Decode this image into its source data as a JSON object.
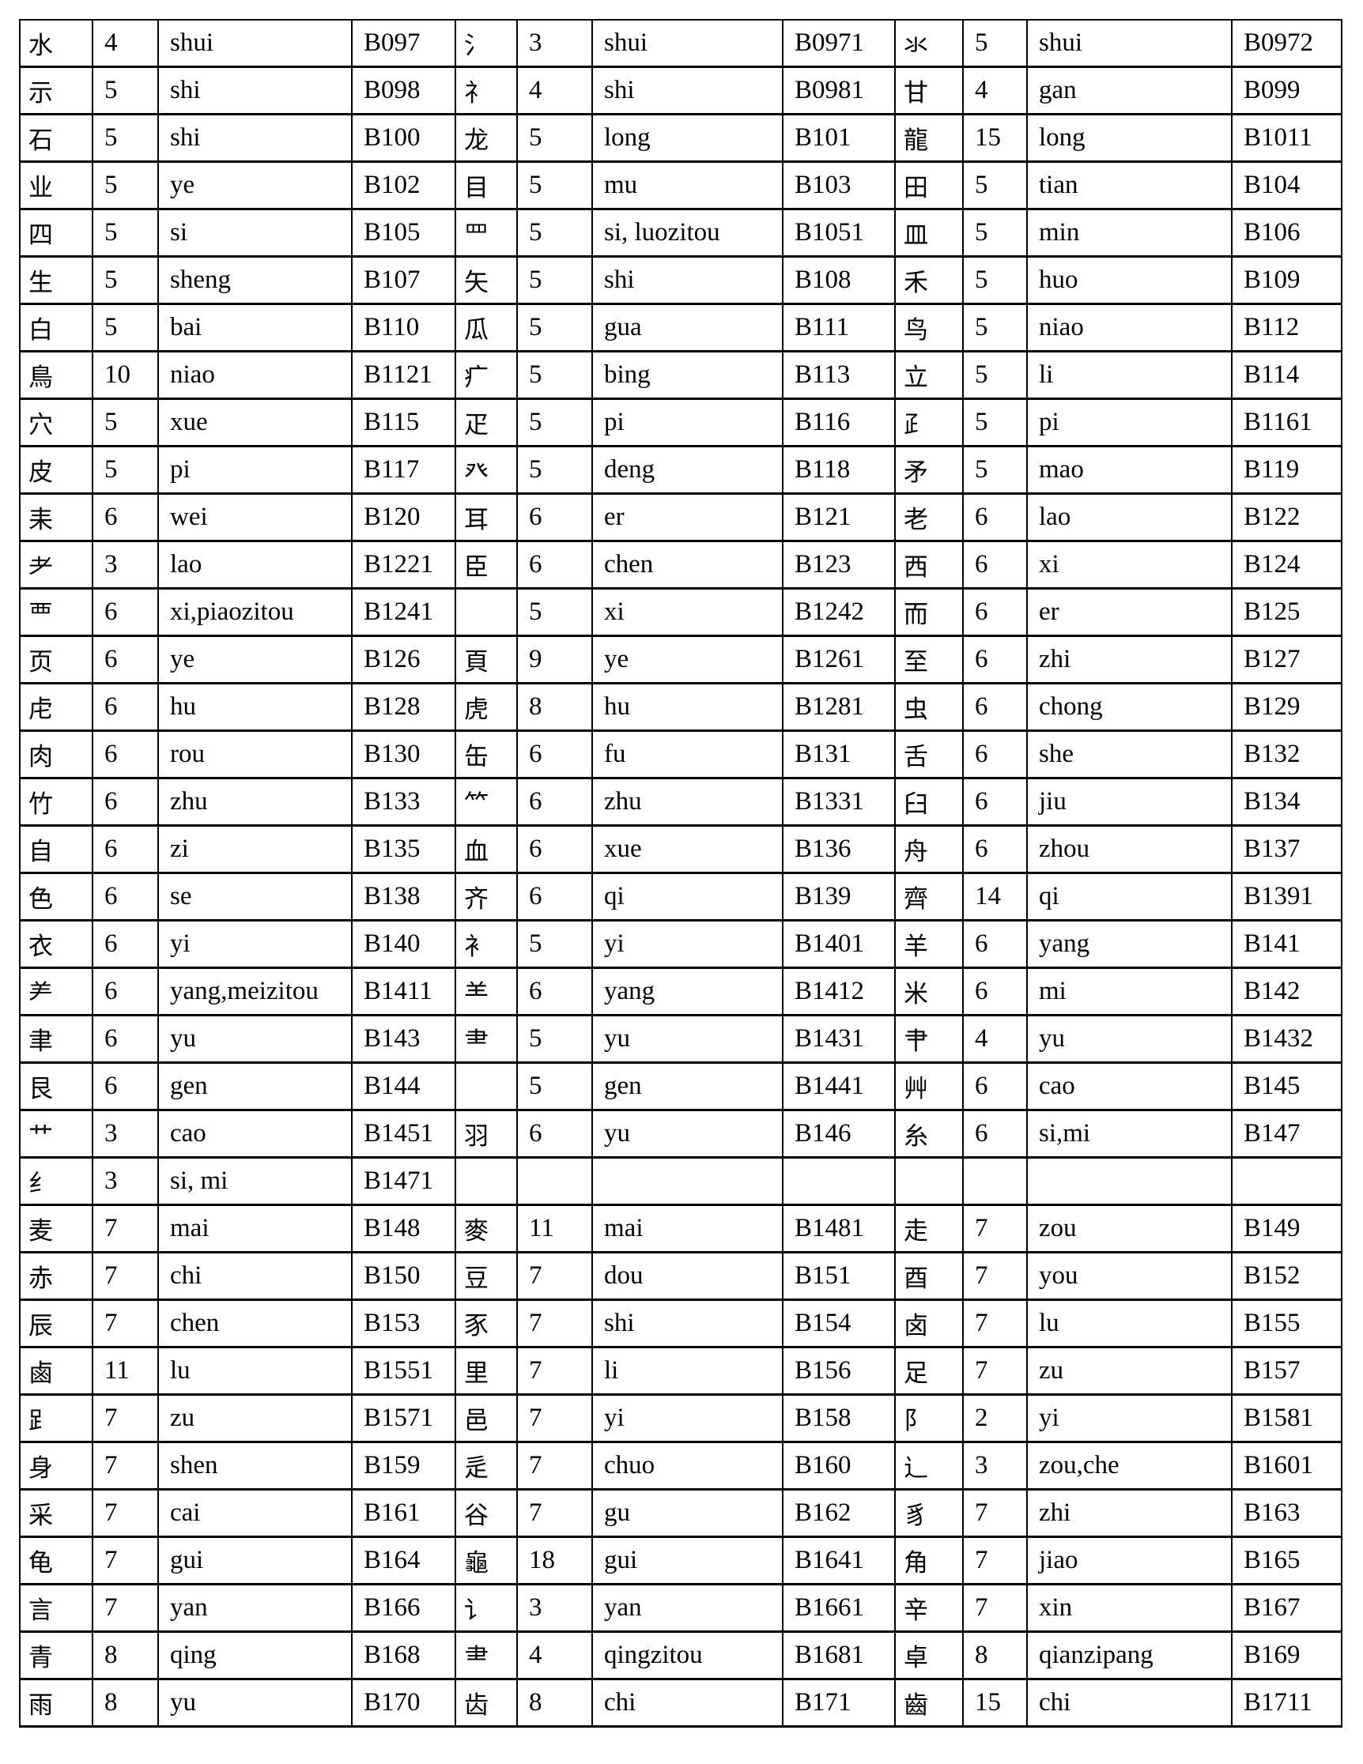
{
  "table": {
    "rows": [
      [
        "水",
        "4",
        "shui",
        "B097",
        "氵",
        "3",
        "shui",
        "B0971",
        "氺",
        "5",
        "shui",
        "B0972"
      ],
      [
        "示",
        "5",
        "shi",
        "B098",
        "礻",
        "4",
        "shi",
        "B0981",
        "甘",
        "4",
        "gan",
        "B099"
      ],
      [
        "石",
        "5",
        "shi",
        "B100",
        "龙",
        "5",
        "long",
        "B101",
        "龍",
        "15",
        "long",
        "B1011"
      ],
      [
        "业",
        "5",
        "ye",
        "B102",
        "目",
        "5",
        "mu",
        "B103",
        "田",
        "5",
        "tian",
        "B104"
      ],
      [
        "四",
        "5",
        "si",
        "B105",
        "罒",
        "5",
        "si, luozitou",
        "B1051",
        "皿",
        "5",
        "min",
        "B106"
      ],
      [
        "生",
        "5",
        "sheng",
        "B107",
        "矢",
        "5",
        "shi",
        "B108",
        "禾",
        "5",
        "huo",
        "B109"
      ],
      [
        "白",
        "5",
        "bai",
        "B110",
        "瓜",
        "5",
        "gua",
        "B111",
        "鸟",
        "5",
        "niao",
        "B112"
      ],
      [
        "鳥",
        "10",
        "niao",
        "B1121",
        "疒",
        "5",
        "bing",
        "B113",
        "立",
        "5",
        "li",
        "B114"
      ],
      [
        "穴",
        "5",
        "xue",
        "B115",
        "疋",
        "5",
        "pi",
        "B116",
        "⺪",
        "5",
        "pi",
        "B1161"
      ],
      [
        "皮",
        "5",
        "pi",
        "B117",
        "癶",
        "5",
        "deng",
        "B118",
        "矛",
        "5",
        "mao",
        "B119"
      ],
      [
        "耒",
        "6",
        "wei",
        "B120",
        "耳",
        "6",
        "er",
        "B121",
        "老",
        "6",
        "lao",
        "B122"
      ],
      [
        "耂",
        "3",
        "lao",
        "B1221",
        "臣",
        "6",
        "chen",
        "B123",
        "西",
        "6",
        "xi",
        "B124"
      ],
      [
        "覀",
        "6",
        "xi,piaozitou",
        "B1241",
        "",
        "5",
        "xi",
        "B1242",
        "而",
        "6",
        "er",
        "B125"
      ],
      [
        "页",
        "6",
        "ye",
        "B126",
        "頁",
        "9",
        "ye",
        "B1261",
        "至",
        "6",
        "zhi",
        "B127"
      ],
      [
        "虍",
        "6",
        "hu",
        "B128",
        "虎",
        "8",
        "hu",
        "B1281",
        "虫",
        "6",
        "chong",
        "B129"
      ],
      [
        "肉",
        "6",
        "rou",
        "B130",
        "缶",
        "6",
        "fu",
        "B131",
        "舌",
        "6",
        "she",
        "B132"
      ],
      [
        "竹",
        "6",
        "zhu",
        "B133",
        "⺮",
        "6",
        "zhu",
        "B1331",
        "臼",
        "6",
        "jiu",
        "B134"
      ],
      [
        "自",
        "6",
        "zi",
        "B135",
        "血",
        "6",
        "xue",
        "B136",
        "舟",
        "6",
        "zhou",
        "B137"
      ],
      [
        "色",
        "6",
        "se",
        "B138",
        "齐",
        "6",
        "qi",
        "B139",
        "齊",
        "14",
        "qi",
        "B1391"
      ],
      [
        "衣",
        "6",
        "yi",
        "B140",
        "衤",
        "5",
        "yi",
        "B1401",
        "羊",
        "6",
        "yang",
        "B141"
      ],
      [
        "⺶",
        "6",
        "yang,meizitou",
        "B1411",
        "⺷",
        "6",
        "yang",
        "B1412",
        "米",
        "6",
        "mi",
        "B142"
      ],
      [
        "聿",
        "6",
        "yu",
        "B143",
        "⺻",
        "5",
        "yu",
        "B1431",
        "⺺",
        "4",
        "yu",
        "B1432"
      ],
      [
        "艮",
        "6",
        "gen",
        "B144",
        "",
        "5",
        "gen",
        "B1441",
        "艸",
        "6",
        "cao",
        "B145"
      ],
      [
        "艹",
        "3",
        "cao",
        "B1451",
        "羽",
        "6",
        "yu",
        "B146",
        "糸",
        "6",
        "si,mi",
        "B147"
      ],
      [
        "纟",
        "3",
        "si, mi",
        "B1471",
        "",
        "",
        "",
        "",
        "",
        "",
        "",
        ""
      ],
      [
        "麦",
        "7",
        "mai",
        "B148",
        "麥",
        "11",
        "mai",
        "B1481",
        "走",
        "7",
        "zou",
        "B149"
      ],
      [
        "赤",
        "7",
        "chi",
        "B150",
        "豆",
        "7",
        "dou",
        "B151",
        "酉",
        "7",
        "you",
        "B152"
      ],
      [
        "辰",
        "7",
        "chen",
        "B153",
        "豕",
        "7",
        "shi",
        "B154",
        "卤",
        "7",
        "lu",
        "B155"
      ],
      [
        "鹵",
        "11",
        "lu",
        "B1551",
        "里",
        "7",
        "li",
        "B156",
        "足",
        "7",
        "zu",
        "B157"
      ],
      [
        "⻊",
        "7",
        "zu",
        "B1571",
        "邑",
        "7",
        "yi",
        "B158",
        "阝",
        "2",
        "yi",
        "B1581"
      ],
      [
        "身",
        "7",
        "shen",
        "B159",
        "辵",
        "7",
        "chuo",
        "B160",
        "辶",
        "3",
        "zou,che",
        "B1601"
      ],
      [
        "采",
        "7",
        "cai",
        "B161",
        "谷",
        "7",
        "gu",
        "B162",
        "豸",
        "7",
        "zhi",
        "B163"
      ],
      [
        "龟",
        "7",
        "gui",
        "B164",
        "龜",
        "18",
        "gui",
        "B1641",
        "角",
        "7",
        "jiao",
        "B165"
      ],
      [
        "言",
        "7",
        "yan",
        "B166",
        "讠",
        "3",
        "yan",
        "B1661",
        "辛",
        "7",
        "xin",
        "B167"
      ],
      [
        "青",
        "8",
        "qing",
        "B168",
        "⺻",
        "4",
        "qingzitou",
        "B1681",
        "卓",
        "8",
        "qianzipang",
        "B169"
      ],
      [
        "雨",
        "8",
        "yu",
        "B170",
        "齿",
        "8",
        "chi",
        "B171",
        "齒",
        "15",
        "chi",
        "B1711"
      ]
    ]
  }
}
